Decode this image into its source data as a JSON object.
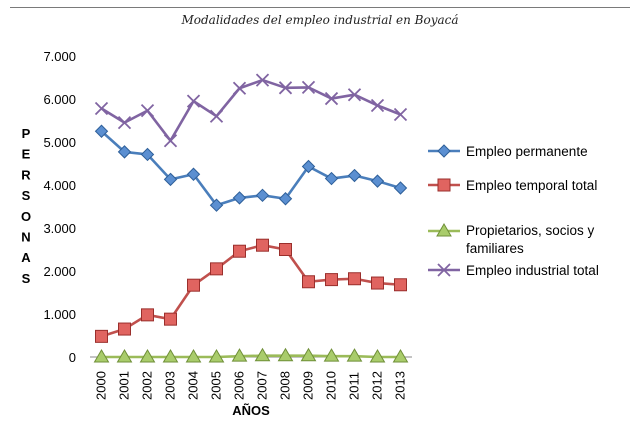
{
  "header": {
    "title": "Modalidades del empleo industrial en Boyacá"
  },
  "chart_data": {
    "type": "line",
    "title": "Modalidades del empleo industrial en Boyacá",
    "xlabel": "AÑOS",
    "ylabel": "PERSONAS",
    "ylim": [
      0,
      7000
    ],
    "yticks": [
      "0",
      "1.000",
      "2.000",
      "3.000",
      "4.000",
      "5.000",
      "6.000",
      "7.000"
    ],
    "x": [
      "2000",
      "2001",
      "2002",
      "2003",
      "2004",
      "2005",
      "2006",
      "2007",
      "2008",
      "2009",
      "2010",
      "2011",
      "2012",
      "2013"
    ],
    "grid": false,
    "legend": "right",
    "series": [
      {
        "name": "Empleo permanente",
        "color": "#4a7ebb",
        "marker": "diamond",
        "values": [
          5250,
          4770,
          4710,
          4130,
          4250,
          3530,
          3700,
          3760,
          3680,
          4430,
          4150,
          4220,
          4090,
          3930
        ]
      },
      {
        "name": "Empleo temporal total",
        "color": "#c0504d",
        "marker": "square",
        "values": [
          480,
          650,
          980,
          880,
          1670,
          2050,
          2460,
          2600,
          2500,
          1750,
          1800,
          1820,
          1720,
          1680
        ]
      },
      {
        "name": "Propietarios, socios y familiares",
        "color": "#9bbb59",
        "marker": "triangle",
        "values": [
          0,
          0,
          0,
          0,
          0,
          0,
          20,
          30,
          30,
          30,
          20,
          20,
          0,
          0
        ]
      },
      {
        "name": "Empleo industrial total",
        "color": "#8064a2",
        "marker": "x",
        "values": [
          5780,
          5450,
          5730,
          5030,
          5950,
          5600,
          6250,
          6440,
          6260,
          6270,
          6010,
          6100,
          5850,
          5640
        ]
      }
    ]
  }
}
